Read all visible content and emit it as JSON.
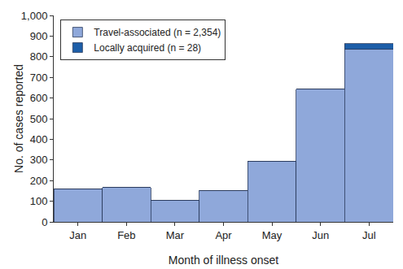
{
  "chart_data": {
    "type": "bar",
    "stacked": true,
    "x_label": "Month of illness onset",
    "y_label": "No. of cases reported",
    "categories": [
      "Jan",
      "Feb",
      "Mar",
      "Apr",
      "May",
      "Jun",
      "Jul"
    ],
    "series": [
      {
        "name": "Travel-associated (n = 2,354)",
        "color": "#8fa8da",
        "values": [
          160,
          167,
          103,
          153,
          293,
          643,
          835
        ]
      },
      {
        "name": "Locally acquired (n = 28)",
        "color": "#1d5ea8",
        "values": [
          0,
          0,
          0,
          0,
          0,
          0,
          28
        ]
      }
    ],
    "ylim": [
      0,
      1000
    ],
    "yticks": [
      0,
      100,
      200,
      300,
      400,
      500,
      600,
      700,
      800,
      900,
      {
        "value": 1000,
        "label": "1,000"
      }
    ],
    "grid": false,
    "legend": "top-left"
  }
}
